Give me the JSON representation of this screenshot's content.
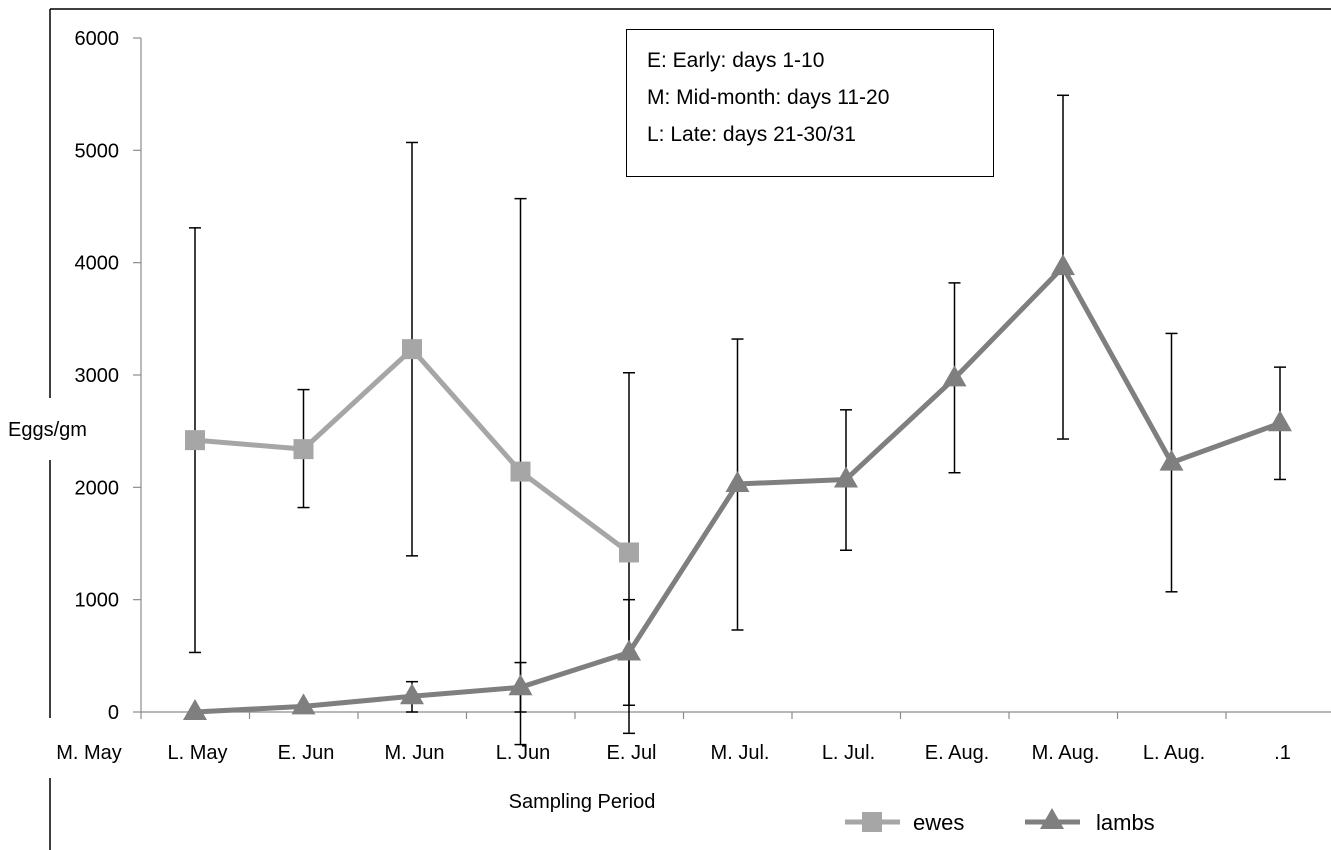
{
  "chart_data": {
    "type": "line",
    "ylabel": "Eggs/gm",
    "xlabel": "Sampling Period",
    "ylim": [
      0,
      6000
    ],
    "yticks": [
      0,
      1000,
      2000,
      3000,
      4000,
      5000,
      6000
    ],
    "categories": [
      "M. May",
      "L. May",
      "E. Jun",
      "M. Jun",
      "L. Jun",
      "E. Jul",
      "M. Jul.",
      "L. Jul.",
      "E. Aug.",
      "M. Aug.",
      "L. Aug.",
      ".1"
    ],
    "series": [
      {
        "name": "ewes",
        "color": "#a6a6a6",
        "marker": "square",
        "points": [
          {
            "category": "L. May",
            "value": 2420,
            "err_low": 530,
            "err_high": 4310
          },
          {
            "category": "E. Jun",
            "value": 2340,
            "err_low": 1820,
            "err_high": 2870
          },
          {
            "category": "M. Jun",
            "value": 3230,
            "err_low": 1390,
            "err_high": 5070
          },
          {
            "category": "L. Jun",
            "value": 2140,
            "err_low": -290,
            "err_high": 4570
          },
          {
            "category": "E. Jul",
            "value": 1420,
            "err_low": -190,
            "err_high": 3020
          }
        ]
      },
      {
        "name": "lambs",
        "color": "#7f7f7f",
        "marker": "triangle",
        "points": [
          {
            "category": "L. May",
            "value": 0,
            "err_low": 0,
            "err_high": 0
          },
          {
            "category": "E. Jun",
            "value": 50,
            "err_low": 50,
            "err_high": 50
          },
          {
            "category": "M. Jun",
            "value": 140,
            "err_low": 0,
            "err_high": 270
          },
          {
            "category": "L. Jun",
            "value": 220,
            "err_low": 0,
            "err_high": 440
          },
          {
            "category": "E. Jul",
            "value": 530,
            "err_low": 60,
            "err_high": 1000
          },
          {
            "category": "M. Jul.",
            "value": 2030,
            "err_low": 730,
            "err_high": 3320
          },
          {
            "category": "L. Jul.",
            "value": 2070,
            "err_low": 1440,
            "err_high": 2690
          },
          {
            "category": "E. Aug.",
            "value": 2970,
            "err_low": 2130,
            "err_high": 3820
          },
          {
            "category": "M. Aug.",
            "value": 3960,
            "err_low": 2430,
            "err_high": 5490
          },
          {
            "category": "L. Aug.",
            "value": 2220,
            "err_low": 1070,
            "err_high": 3370
          },
          {
            "category": ".1",
            "value": 2570,
            "err_low": 2070,
            "err_high": 3070
          }
        ]
      }
    ],
    "legend": {
      "position": "bottom-right",
      "entries": [
        "ewes",
        "lambs"
      ]
    },
    "annotation": [
      "E:  Early: days 1-10",
      "M:  Mid-month: days 11-20",
      "L:  Late:  days 21-30/31"
    ],
    "grid": false
  }
}
